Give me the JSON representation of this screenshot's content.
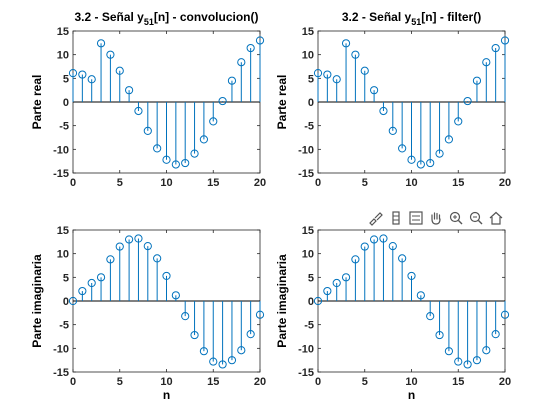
{
  "figure": {
    "colors": {
      "stem": "#0072BD",
      "axis": "#262626",
      "baseline": "#000000",
      "background": "#ffffff"
    },
    "toolbar": {
      "icons": [
        "brush-icon",
        "insert-colorbar-icon",
        "insert-legend-icon",
        "pan-icon",
        "zoom-in-icon",
        "zoom-out-icon",
        "home-icon"
      ]
    }
  },
  "chart_data": [
    {
      "type": "stem",
      "title": "3.2 - Señal y51[n] - convolucion()",
      "title_parts": {
        "prefix": "3.2 - Señal y",
        "subscript": "51",
        "suffix": "[n] - convolucion()"
      },
      "xlabel": "",
      "ylabel": "Parte real",
      "xlim": [
        0,
        20
      ],
      "ylim": [
        -15,
        15
      ],
      "xticks": [
        0,
        5,
        10,
        15,
        20
      ],
      "yticks": [
        -15,
        -10,
        -5,
        0,
        5,
        10,
        15
      ],
      "x": [
        0,
        1,
        2,
        3,
        4,
        5,
        6,
        7,
        8,
        9,
        10,
        11,
        12,
        13,
        14,
        15,
        16,
        17,
        18,
        19,
        20
      ],
      "values": [
        6.1,
        5.8,
        4.8,
        12.4,
        10.0,
        6.6,
        2.5,
        -1.9,
        -6.1,
        -9.8,
        -12.2,
        -13.2,
        -12.9,
        -10.9,
        -7.9,
        -4.1,
        0.2,
        4.5,
        8.4,
        11.4,
        13.0
      ]
    },
    {
      "type": "stem",
      "title": "3.2 - Señal y51[n] - filter()",
      "title_parts": {
        "prefix": "3.2 - Señal y",
        "subscript": "51",
        "suffix": "[n] - filter()"
      },
      "xlabel": "",
      "ylabel": "Parte real",
      "xlim": [
        0,
        20
      ],
      "ylim": [
        -15,
        15
      ],
      "xticks": [
        0,
        5,
        10,
        15,
        20
      ],
      "yticks": [
        -15,
        -10,
        -5,
        0,
        5,
        10,
        15
      ],
      "x": [
        0,
        1,
        2,
        3,
        4,
        5,
        6,
        7,
        8,
        9,
        10,
        11,
        12,
        13,
        14,
        15,
        16,
        17,
        18,
        19,
        20
      ],
      "values": [
        6.1,
        5.8,
        4.8,
        12.4,
        10.0,
        6.6,
        2.5,
        -1.9,
        -6.1,
        -9.8,
        -12.2,
        -13.2,
        -12.9,
        -10.9,
        -7.9,
        -4.1,
        0.2,
        4.5,
        8.4,
        11.4,
        13.0
      ]
    },
    {
      "type": "stem",
      "title": "",
      "xlabel": "n",
      "ylabel": "Parte imaginaria",
      "xlim": [
        0,
        20
      ],
      "ylim": [
        -15,
        15
      ],
      "xticks": [
        0,
        5,
        10,
        15,
        20
      ],
      "yticks": [
        -15,
        -10,
        -5,
        0,
        5,
        10,
        15
      ],
      "x": [
        0,
        1,
        2,
        3,
        4,
        5,
        6,
        7,
        8,
        9,
        10,
        11,
        12,
        13,
        14,
        15,
        16,
        17,
        18,
        19,
        20
      ],
      "values": [
        0.0,
        2.1,
        3.8,
        5.0,
        8.8,
        11.5,
        13.0,
        13.2,
        11.6,
        9.0,
        5.3,
        1.2,
        -3.2,
        -7.2,
        -10.6,
        -12.8,
        -13.4,
        -12.5,
        -10.4,
        -7.0,
        -2.9
      ]
    },
    {
      "type": "stem",
      "title": "",
      "xlabel": "n",
      "ylabel": "Parte imaginaria",
      "xlim": [
        0,
        20
      ],
      "ylim": [
        -15,
        15
      ],
      "xticks": [
        0,
        5,
        10,
        15,
        20
      ],
      "yticks": [
        -15,
        -10,
        -5,
        0,
        5,
        10,
        15
      ],
      "x": [
        0,
        1,
        2,
        3,
        4,
        5,
        6,
        7,
        8,
        9,
        10,
        11,
        12,
        13,
        14,
        15,
        16,
        17,
        18,
        19,
        20
      ],
      "values": [
        0.0,
        2.1,
        3.8,
        5.0,
        8.8,
        11.5,
        13.0,
        13.2,
        11.6,
        9.0,
        5.3,
        1.2,
        -3.2,
        -7.2,
        -10.6,
        -12.8,
        -13.4,
        -12.5,
        -10.4,
        -7.0,
        -2.9
      ]
    }
  ]
}
